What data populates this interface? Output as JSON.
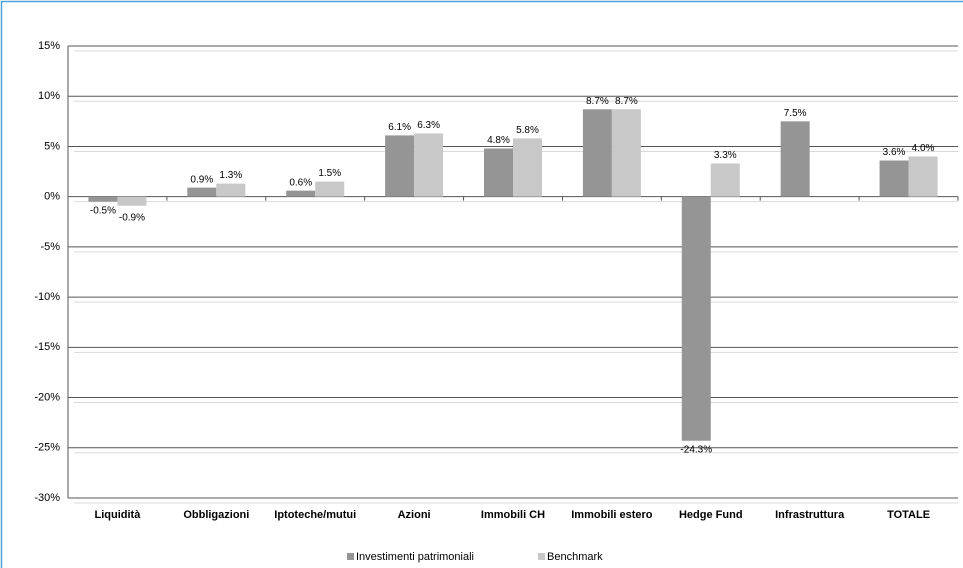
{
  "chart_data": {
    "type": "bar",
    "categories": [
      "Liquidità",
      "Obbligazioni",
      "Iptoteche/mutui",
      "Azioni",
      "Immobili CH",
      "Immobili estero",
      "Hedge Fund",
      "Infrastruttura",
      "TOTALE"
    ],
    "series": [
      {
        "name": "Investimenti patrimoniali",
        "color": "#959595",
        "values": [
          -0.5,
          0.9,
          0.6,
          6.1,
          4.8,
          8.7,
          -24.3,
          7.5,
          3.6
        ],
        "value_labels": [
          "-0.5%",
          "0.9%",
          "0.6%",
          "6.1%",
          "4.8%",
          "8.7%",
          "-24.3%",
          "7.5%",
          "3.6%"
        ]
      },
      {
        "name": "Benchmark",
        "color": "#c8c8c8",
        "values": [
          -0.9,
          1.3,
          1.5,
          6.3,
          5.8,
          8.7,
          3.3,
          null,
          4.0
        ],
        "value_labels": [
          "-0.9%",
          "1.3%",
          "1.5%",
          "6.3%",
          "5.8%",
          "8.7%",
          "3.3%",
          null,
          "4.0%"
        ]
      }
    ],
    "ylim": [
      -30,
      15
    ],
    "yticks": [
      {
        "value": -30,
        "label": "-30%"
      },
      {
        "value": -25,
        "label": "-25%"
      },
      {
        "value": -20,
        "label": "-20%"
      },
      {
        "value": -15,
        "label": "-15%"
      },
      {
        "value": -10,
        "label": "-10%"
      },
      {
        "value": -5,
        "label": "-5%"
      },
      {
        "value": 0,
        "label": "0%"
      },
      {
        "value": 5,
        "label": "5%"
      },
      {
        "value": 10,
        "label": "10%"
      },
      {
        "value": 15,
        "label": "15%"
      }
    ],
    "grid": true,
    "legend": "bottom"
  }
}
